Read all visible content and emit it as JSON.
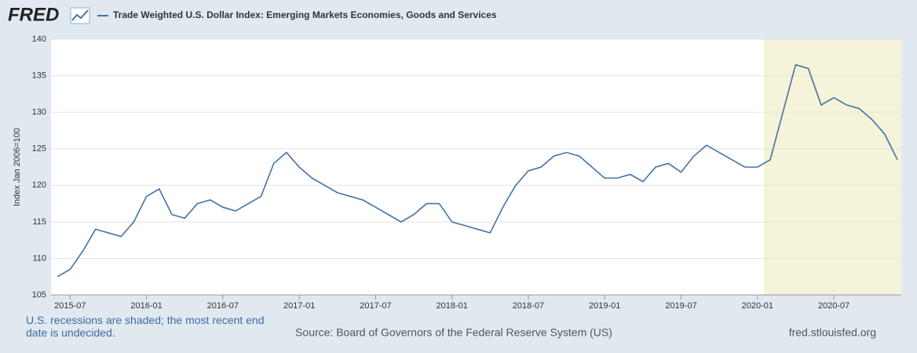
{
  "logo": "FRED",
  "chart_data": {
    "type": "line",
    "title": "Trade Weighted U.S. Dollar Index: Emerging Markets Economies, Goods and Services",
    "ylabel": "Index Jan 2006=100",
    "x": [
      "2015-06",
      "2015-07",
      "2015-08",
      "2015-09",
      "2015-10",
      "2015-11",
      "2015-12",
      "2016-01",
      "2016-02",
      "2016-03",
      "2016-04",
      "2016-05",
      "2016-06",
      "2016-07",
      "2016-08",
      "2016-09",
      "2016-10",
      "2016-11",
      "2016-12",
      "2017-01",
      "2017-02",
      "2017-03",
      "2017-04",
      "2017-05",
      "2017-06",
      "2017-07",
      "2017-08",
      "2017-09",
      "2017-10",
      "2017-11",
      "2017-12",
      "2018-01",
      "2018-02",
      "2018-03",
      "2018-04",
      "2018-05",
      "2018-06",
      "2018-07",
      "2018-08",
      "2018-09",
      "2018-10",
      "2018-11",
      "2018-12",
      "2019-01",
      "2019-02",
      "2019-03",
      "2019-04",
      "2019-05",
      "2019-06",
      "2019-07",
      "2019-08",
      "2019-09",
      "2019-10",
      "2019-11",
      "2019-12",
      "2020-01",
      "2020-02",
      "2020-03",
      "2020-04",
      "2020-05",
      "2020-06",
      "2020-07",
      "2020-08",
      "2020-09",
      "2020-10",
      "2020-11",
      "2020-12"
    ],
    "series": [
      {
        "name": "Trade Weighted U.S. Dollar Index: Emerging Markets Economies, Goods and Services",
        "color": "#4572a7",
        "values": [
          107.5,
          108.5,
          111,
          114,
          113.5,
          113,
          115,
          118.5,
          119.5,
          116,
          115.5,
          117.5,
          118,
          117,
          116.5,
          117.5,
          118.5,
          123,
          124.5,
          122.5,
          121,
          120,
          119,
          118.5,
          118,
          117,
          116,
          115,
          116,
          117.5,
          117.5,
          115,
          114.5,
          114,
          113.5,
          117,
          120,
          122,
          122.5,
          124,
          124.5,
          124,
          122.5,
          121,
          121,
          121.5,
          120.5,
          122.5,
          123,
          121.8,
          124,
          125.5,
          124.5,
          123.5,
          122.5,
          122.5,
          123.5,
          130,
          136.5,
          136,
          131,
          132,
          131,
          130.5,
          129,
          127,
          123.5
        ]
      }
    ],
    "xlim": [
      "2015-06",
      "2020-12"
    ],
    "xticks": [
      "2015-07",
      "2016-01",
      "2016-07",
      "2017-01",
      "2017-07",
      "2018-01",
      "2018-07",
      "2019-01",
      "2019-07",
      "2020-01",
      "2020-07"
    ],
    "ylim": [
      105,
      140
    ],
    "yticks": [
      105,
      110,
      115,
      120,
      125,
      130,
      135,
      140
    ],
    "grid": true,
    "recession": [
      "2020-02",
      "2020-12"
    ],
    "note": "U.S. recessions are shaded; the most recent end date is undecided.",
    "source": "Source: Board of Governors of the Federal Reserve System (US)",
    "site": "fred.stlouisfed.org"
  }
}
